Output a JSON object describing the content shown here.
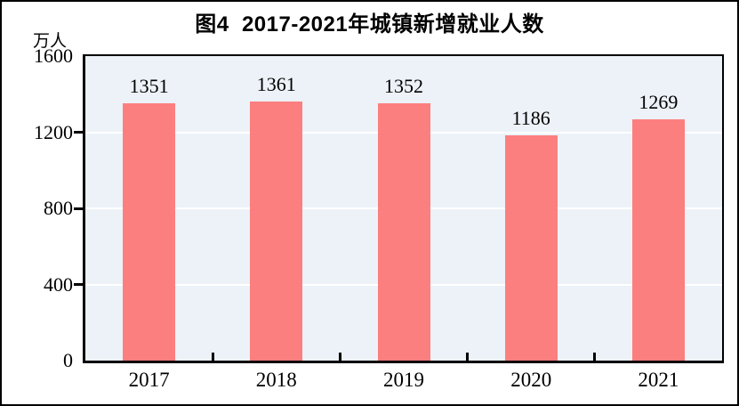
{
  "chart_data": {
    "type": "bar",
    "title": "图4  2017-2021年城镇新增就业人数",
    "unit_label": "万人",
    "categories": [
      "2017",
      "2018",
      "2019",
      "2020",
      "2021"
    ],
    "values": [
      1351,
      1361,
      1352,
      1186,
      1269
    ],
    "ylim": [
      0,
      1600
    ],
    "yticks": [
      0,
      400,
      800,
      1200,
      1600
    ],
    "gridline_values": [
      400,
      800,
      1200
    ],
    "grid": "horizontal",
    "legend_position": "none",
    "bar_color": "#fc7f7f",
    "plot_background": "#ecf2f8",
    "gridline_color": "#ffffff",
    "axis_color": "#000000",
    "text_color": "#000000"
  }
}
